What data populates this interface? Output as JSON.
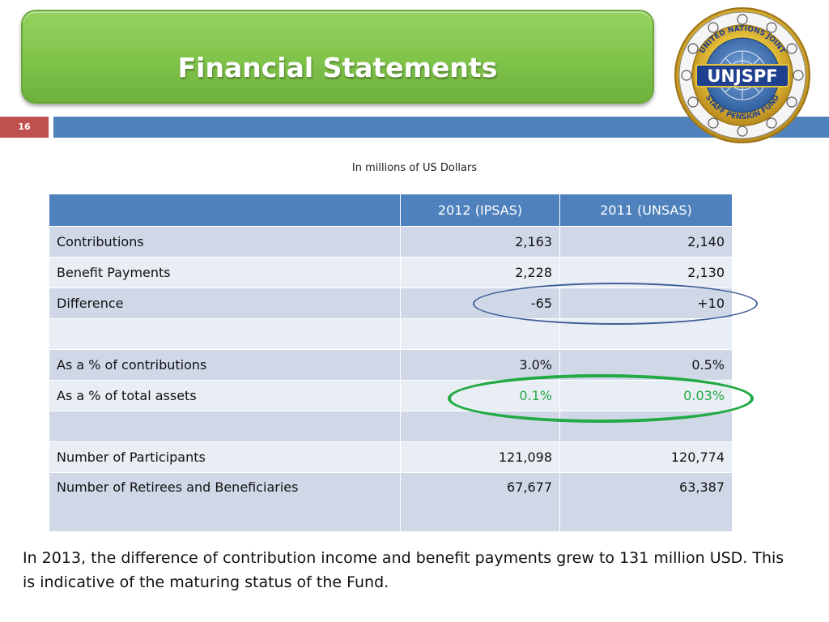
{
  "slide": {
    "title": "Financial Statements",
    "number": "16",
    "subtitle": "In millions of US Dollars",
    "note": "In 2013, the difference of contribution income and benefit payments grew to 131 million USD. This is indicative of the maturing status of the Fund."
  },
  "logo": {
    "top_text": "UNITED NATIONS JOINT",
    "bottom_text": "STAFF PENSION FUND",
    "acronym": "UNJSPF"
  },
  "table": {
    "headers": [
      "",
      "2012 (IPSAS)",
      "2011 (UNSAS)"
    ],
    "rows": [
      {
        "label": "Contributions",
        "v2012": "2,163",
        "v2011": "2,140"
      },
      {
        "label": "Benefit Payments",
        "v2012": "2,228",
        "v2011": "2,130"
      },
      {
        "label": "Difference",
        "v2012": "-65",
        "v2011": "+10"
      },
      {
        "label": "",
        "v2012": "",
        "v2011": ""
      },
      {
        "label": "As a % of contributions",
        "v2012": "3.0%",
        "v2011": "0.5%"
      },
      {
        "label": "As a % of total assets",
        "v2012": "0.1%",
        "v2011": "0.03%"
      },
      {
        "label": "",
        "v2012": "",
        "v2011": ""
      },
      {
        "label": "Number of Participants",
        "v2012": "121,098",
        "v2011": "120,774"
      },
      {
        "label": "Number of Retirees and Beneficiaries",
        "v2012": "67,677",
        "v2011": "63,387"
      }
    ]
  },
  "colors": {
    "title_green": "#7fc34a",
    "header_blue": "#4f81bd",
    "slide_number_red": "#c0504d",
    "highlight_green": "#22aa44",
    "oval_blue": "#3f5f9a"
  }
}
